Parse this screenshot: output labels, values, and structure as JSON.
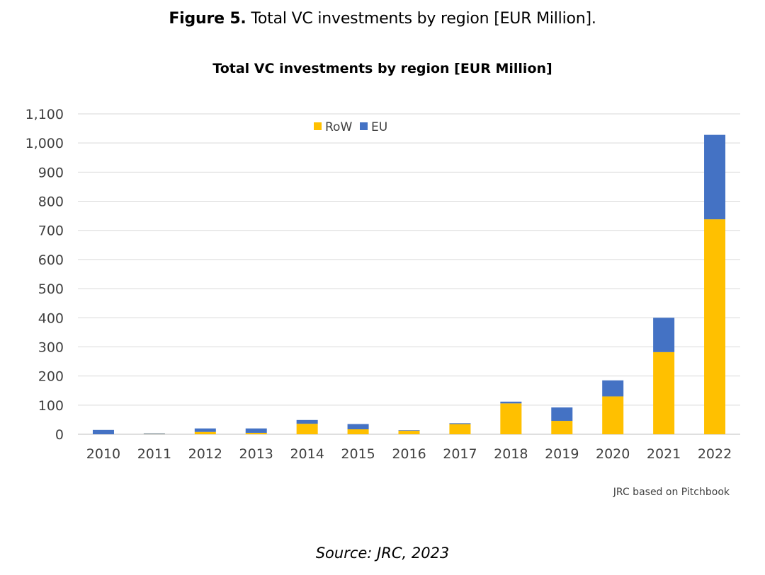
{
  "figure_caption": {
    "number": "Figure 5.",
    "text": "Total VC investments by region [EUR Million]."
  },
  "source_note": "JRC based on Pitchbook",
  "source_line": "Source: JRC, 2023",
  "chart_data": {
    "type": "bar",
    "stacked": true,
    "title": "Total VC investments by region [EUR Million]",
    "xlabel": "",
    "ylabel": "",
    "categories": [
      "2010",
      "2011",
      "2012",
      "2013",
      "2014",
      "2015",
      "2016",
      "2017",
      "2018",
      "2019",
      "2020",
      "2021",
      "2022"
    ],
    "series": [
      {
        "name": "RoW",
        "color": "#FFC000",
        "values": [
          0,
          1,
          8,
          5,
          36,
          17,
          12,
          35,
          106,
          46,
          130,
          282,
          738
        ]
      },
      {
        "name": "EU",
        "color": "#4472C4",
        "values": [
          15,
          2,
          12,
          15,
          13,
          18,
          2,
          3,
          6,
          46,
          55,
          118,
          290
        ]
      }
    ],
    "ylim": [
      0,
      1100
    ],
    "yticks": [
      0,
      100,
      200,
      300,
      400,
      500,
      600,
      700,
      800,
      900,
      1000,
      1100
    ],
    "ytick_labels": [
      "0",
      "100",
      "200",
      "300",
      "400",
      "500",
      "600",
      "700",
      "800",
      "900",
      "1,000",
      "1,100"
    ],
    "grid": true,
    "legend": "top-center",
    "gridline_color": "#D9D9D9"
  }
}
